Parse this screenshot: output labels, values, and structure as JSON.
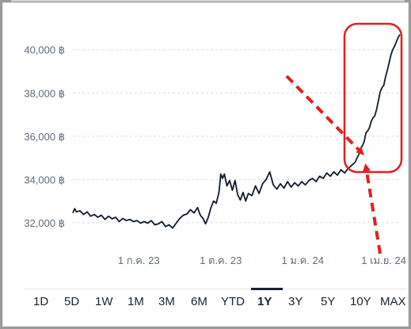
{
  "chart_data": {
    "type": "line",
    "y_ticks": [
      "32,000 ฿",
      "34,000 ฿",
      "36,000 ฿",
      "38,000 ฿",
      "40,000 ฿"
    ],
    "y_tick_values": [
      32000,
      34000,
      36000,
      38000,
      40000
    ],
    "x_ticks": [
      "1 ก.ค. 23",
      "1 ต.ค. 23",
      "1 ม.ค. 24",
      "1 เม.ย. 24"
    ],
    "x_tick_values": [
      "2023-07-01",
      "2023-10-01",
      "2024-01-01",
      "2024-04-01"
    ],
    "ylim": [
      31300,
      41200
    ],
    "xlim": [
      "2023-04-18",
      "2024-04-20"
    ],
    "grid": true,
    "series": [
      {
        "color": "#0f1b2d",
        "points": [
          [
            "2023-04-18",
            32450
          ],
          [
            "2023-04-20",
            32650
          ],
          [
            "2023-04-22",
            32500
          ],
          [
            "2023-04-26",
            32550
          ],
          [
            "2023-04-30",
            32380
          ],
          [
            "2023-05-04",
            32500
          ],
          [
            "2023-05-08",
            32300
          ],
          [
            "2023-05-12",
            32380
          ],
          [
            "2023-05-16",
            32250
          ],
          [
            "2023-05-20",
            32350
          ],
          [
            "2023-05-24",
            32150
          ],
          [
            "2023-05-28",
            32300
          ],
          [
            "2023-06-01",
            32180
          ],
          [
            "2023-06-05",
            32250
          ],
          [
            "2023-06-09",
            32050
          ],
          [
            "2023-06-13",
            32200
          ],
          [
            "2023-06-17",
            32100
          ],
          [
            "2023-06-21",
            32150
          ],
          [
            "2023-06-25",
            32050
          ],
          [
            "2023-06-29",
            32100
          ],
          [
            "2023-07-03",
            31980
          ],
          [
            "2023-07-07",
            32050
          ],
          [
            "2023-07-11",
            31980
          ],
          [
            "2023-07-15",
            32100
          ],
          [
            "2023-07-19",
            31900
          ],
          [
            "2023-07-23",
            31950
          ],
          [
            "2023-07-27",
            32050
          ],
          [
            "2023-07-31",
            31820
          ],
          [
            "2023-08-04",
            31900
          ],
          [
            "2023-08-08",
            31750
          ],
          [
            "2023-08-12",
            31980
          ],
          [
            "2023-08-16",
            32200
          ],
          [
            "2023-08-20",
            32350
          ],
          [
            "2023-08-24",
            32400
          ],
          [
            "2023-08-28",
            32600
          ],
          [
            "2023-09-01",
            32450
          ],
          [
            "2023-09-05",
            32700
          ],
          [
            "2023-09-08",
            32350
          ],
          [
            "2023-09-11",
            32200
          ],
          [
            "2023-09-14",
            31950
          ],
          [
            "2023-09-17",
            32250
          ],
          [
            "2023-09-20",
            32700
          ],
          [
            "2023-09-23",
            33000
          ],
          [
            "2023-09-26",
            32900
          ],
          [
            "2023-09-29",
            33400
          ],
          [
            "2023-10-01",
            34250
          ],
          [
            "2023-10-03",
            34050
          ],
          [
            "2023-10-05",
            34250
          ],
          [
            "2023-10-08",
            33700
          ],
          [
            "2023-10-11",
            33950
          ],
          [
            "2023-10-14",
            33500
          ],
          [
            "2023-10-17",
            33950
          ],
          [
            "2023-10-20",
            33300
          ],
          [
            "2023-10-23",
            33050
          ],
          [
            "2023-10-26",
            33400
          ],
          [
            "2023-10-29",
            33000
          ],
          [
            "2023-11-01",
            33350
          ],
          [
            "2023-11-05",
            33250
          ],
          [
            "2023-11-09",
            33700
          ],
          [
            "2023-11-13",
            33350
          ],
          [
            "2023-11-17",
            33800
          ],
          [
            "2023-11-21",
            34000
          ],
          [
            "2023-11-25",
            34350
          ],
          [
            "2023-11-29",
            33750
          ],
          [
            "2023-12-03",
            33550
          ],
          [
            "2023-12-07",
            33800
          ],
          [
            "2023-12-11",
            33600
          ],
          [
            "2023-12-15",
            33900
          ],
          [
            "2023-12-19",
            33650
          ],
          [
            "2023-12-23",
            33850
          ],
          [
            "2023-12-27",
            33700
          ],
          [
            "2023-12-31",
            33900
          ],
          [
            "2024-01-04",
            33750
          ],
          [
            "2024-01-08",
            33950
          ],
          [
            "2024-01-12",
            34050
          ],
          [
            "2024-01-16",
            33900
          ],
          [
            "2024-01-20",
            34150
          ],
          [
            "2024-01-24",
            34050
          ],
          [
            "2024-01-28",
            34300
          ],
          [
            "2024-02-01",
            34150
          ],
          [
            "2024-02-05",
            34350
          ],
          [
            "2024-02-09",
            34200
          ],
          [
            "2024-02-13",
            34450
          ],
          [
            "2024-02-17",
            34300
          ],
          [
            "2024-02-21",
            34500
          ],
          [
            "2024-02-25",
            34650
          ],
          [
            "2024-02-29",
            34800
          ],
          [
            "2024-03-02",
            35000
          ],
          [
            "2024-03-04",
            35150
          ],
          [
            "2024-03-06",
            35450
          ],
          [
            "2024-03-08",
            35550
          ],
          [
            "2024-03-10",
            35750
          ],
          [
            "2024-03-12",
            36150
          ],
          [
            "2024-03-14",
            36250
          ],
          [
            "2024-03-16",
            36400
          ],
          [
            "2024-03-18",
            36700
          ],
          [
            "2024-03-20",
            36850
          ],
          [
            "2024-03-22",
            36950
          ],
          [
            "2024-03-24",
            37250
          ],
          [
            "2024-03-26",
            37650
          ],
          [
            "2024-03-28",
            38050
          ],
          [
            "2024-03-30",
            38250
          ],
          [
            "2024-04-01",
            38350
          ],
          [
            "2024-04-03",
            38750
          ],
          [
            "2024-04-05",
            39050
          ],
          [
            "2024-04-07",
            39400
          ],
          [
            "2024-04-09",
            39750
          ],
          [
            "2024-04-11",
            40000
          ],
          [
            "2024-04-13",
            40150
          ],
          [
            "2024-04-15",
            40350
          ],
          [
            "2024-04-17",
            40550
          ],
          [
            "2024-04-19",
            40700
          ]
        ]
      }
    ]
  },
  "annotations": {
    "highlight_color": "#e02020"
  },
  "range_tabs": {
    "items": [
      "1D",
      "5D",
      "1W",
      "1M",
      "3M",
      "6M",
      "YTD",
      "1Y",
      "3Y",
      "5Y",
      "10Y",
      "MAX"
    ],
    "active": "1Y"
  }
}
